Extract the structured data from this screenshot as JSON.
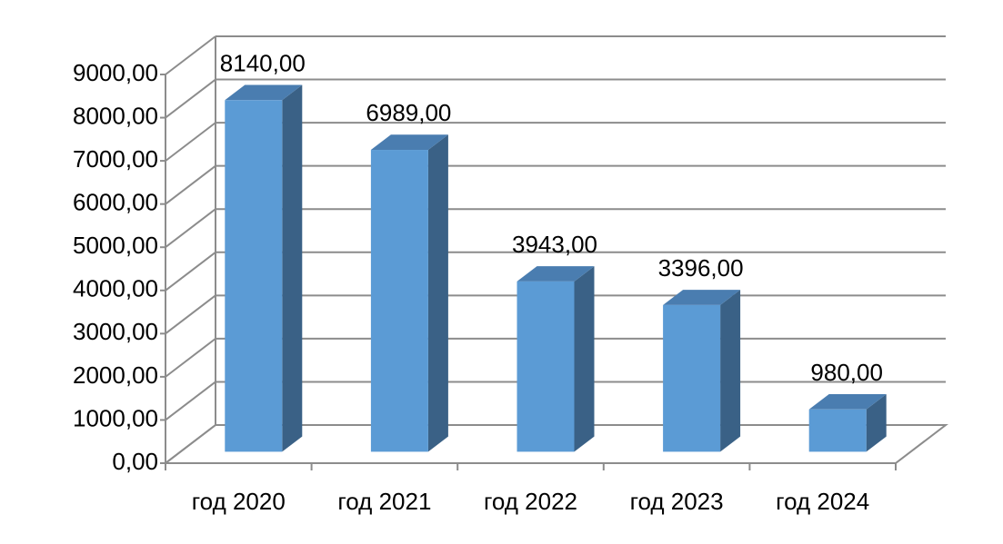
{
  "chart_data": {
    "type": "bar3d",
    "categories": [
      "год 2020",
      "год 2021",
      "год 2022",
      "год 2023",
      "год 2024"
    ],
    "values": [
      8140,
      6989,
      3943,
      3396,
      980
    ],
    "value_labels": [
      "8140,00",
      "6989,00",
      "3943,00",
      "3396,00",
      "980,00"
    ],
    "color": "#5b9bd5",
    "ylim": [
      0,
      9000
    ],
    "yticks": [
      {
        "value": 0,
        "label": "0,00"
      },
      {
        "value": 1000,
        "label": "1000,00"
      },
      {
        "value": 2000,
        "label": "2000,00"
      },
      {
        "value": 3000,
        "label": "3000,00"
      },
      {
        "value": 4000,
        "label": "4000,00"
      },
      {
        "value": 5000,
        "label": "5000,00"
      },
      {
        "value": 6000,
        "label": "6000,00"
      },
      {
        "value": 7000,
        "label": "7000,00"
      },
      {
        "value": 8000,
        "label": "8000,00"
      },
      {
        "value": 9000,
        "label": "9000,00"
      }
    ],
    "grid": true
  }
}
